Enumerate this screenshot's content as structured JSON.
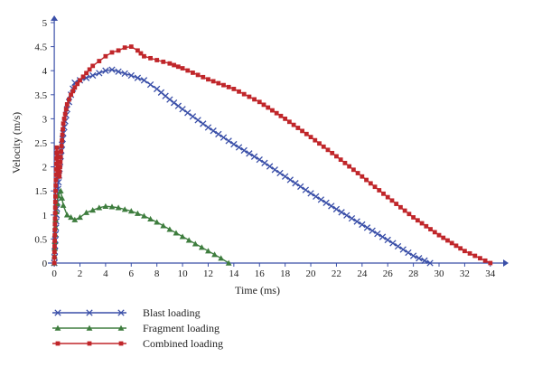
{
  "chart_data": {
    "type": "line",
    "title": "",
    "xlabel": "Time (ms)",
    "ylabel": "Velocity (m/s)",
    "xlim": [
      -0.5,
      35
    ],
    "ylim": [
      0,
      5
    ],
    "x_ticks": [
      0,
      2,
      4,
      6,
      8,
      10,
      12,
      14,
      16,
      18,
      20,
      22,
      24,
      26,
      28,
      30,
      32,
      34
    ],
    "y_ticks": [
      0,
      0.5,
      1,
      1.5,
      2,
      2.5,
      3,
      3.5,
      4,
      4.5,
      5
    ],
    "grid": false,
    "legend_position": "bottom-left",
    "series": [
      {
        "name": "Blast loading",
        "color": "#3a4fa8",
        "marker": "x",
        "points": [
          [
            0,
            0
          ],
          [
            0.1,
            0.6
          ],
          [
            0.25,
            1.4
          ],
          [
            0.45,
            2.1
          ],
          [
            0.7,
            2.7
          ],
          [
            1.0,
            3.2
          ],
          [
            1.3,
            3.5
          ],
          [
            1.6,
            3.75
          ],
          [
            2.0,
            3.8
          ],
          [
            2.5,
            3.85
          ],
          [
            3.0,
            3.9
          ],
          [
            3.5,
            3.95
          ],
          [
            4.0,
            4.0
          ],
          [
            4.5,
            4.02
          ],
          [
            5.0,
            3.98
          ],
          [
            6.0,
            3.9
          ],
          [
            7.0,
            3.8
          ],
          [
            8.0,
            3.62
          ],
          [
            9.0,
            3.4
          ],
          [
            10.0,
            3.2
          ],
          [
            12.0,
            2.82
          ],
          [
            14.0,
            2.47
          ],
          [
            16.0,
            2.15
          ],
          [
            18.0,
            1.8
          ],
          [
            20.0,
            1.45
          ],
          [
            22.0,
            1.12
          ],
          [
            24.0,
            0.8
          ],
          [
            26.0,
            0.48
          ],
          [
            28.0,
            0.15
          ],
          [
            29.3,
            0.0
          ]
        ]
      },
      {
        "name": "Fragment loading",
        "color": "#3e7d3e",
        "marker": "triangle",
        "points": [
          [
            0,
            0
          ],
          [
            0.1,
            0.9
          ],
          [
            0.3,
            1.4
          ],
          [
            0.5,
            1.5
          ],
          [
            0.7,
            1.2
          ],
          [
            1.0,
            1.0
          ],
          [
            1.3,
            0.95
          ],
          [
            1.6,
            0.9
          ],
          [
            2.0,
            0.95
          ],
          [
            2.5,
            1.05
          ],
          [
            3.0,
            1.1
          ],
          [
            3.5,
            1.15
          ],
          [
            4.0,
            1.18
          ],
          [
            4.5,
            1.17
          ],
          [
            5.0,
            1.15
          ],
          [
            6.0,
            1.08
          ],
          [
            7.0,
            0.98
          ],
          [
            8.0,
            0.85
          ],
          [
            9.0,
            0.7
          ],
          [
            10.0,
            0.55
          ],
          [
            11.0,
            0.4
          ],
          [
            12.0,
            0.25
          ],
          [
            13.0,
            0.1
          ],
          [
            13.6,
            0.0
          ]
        ]
      },
      {
        "name": "Combined loading",
        "color": "#c0262a",
        "marker": "square",
        "points": [
          [
            0,
            0
          ],
          [
            0.1,
            1.5
          ],
          [
            0.2,
            2.4
          ],
          [
            0.3,
            2.0
          ],
          [
            0.4,
            1.8
          ],
          [
            0.5,
            2.2
          ],
          [
            0.7,
            2.9
          ],
          [
            1.0,
            3.3
          ],
          [
            1.3,
            3.5
          ],
          [
            1.6,
            3.65
          ],
          [
            2.0,
            3.8
          ],
          [
            2.5,
            3.95
          ],
          [
            3.0,
            4.1
          ],
          [
            3.5,
            4.2
          ],
          [
            4.0,
            4.3
          ],
          [
            4.5,
            4.38
          ],
          [
            5.0,
            4.42
          ],
          [
            5.5,
            4.48
          ],
          [
            6.0,
            4.5
          ],
          [
            6.5,
            4.42
          ],
          [
            7.0,
            4.3
          ],
          [
            8.0,
            4.22
          ],
          [
            9.0,
            4.15
          ],
          [
            10.0,
            4.05
          ],
          [
            12.0,
            3.82
          ],
          [
            14.0,
            3.62
          ],
          [
            16.0,
            3.35
          ],
          [
            18.0,
            3.0
          ],
          [
            20.0,
            2.62
          ],
          [
            22.0,
            2.22
          ],
          [
            24.0,
            1.8
          ],
          [
            26.0,
            1.37
          ],
          [
            28.0,
            0.95
          ],
          [
            30.0,
            0.58
          ],
          [
            32.0,
            0.25
          ],
          [
            34.0,
            0.0
          ]
        ]
      }
    ]
  }
}
